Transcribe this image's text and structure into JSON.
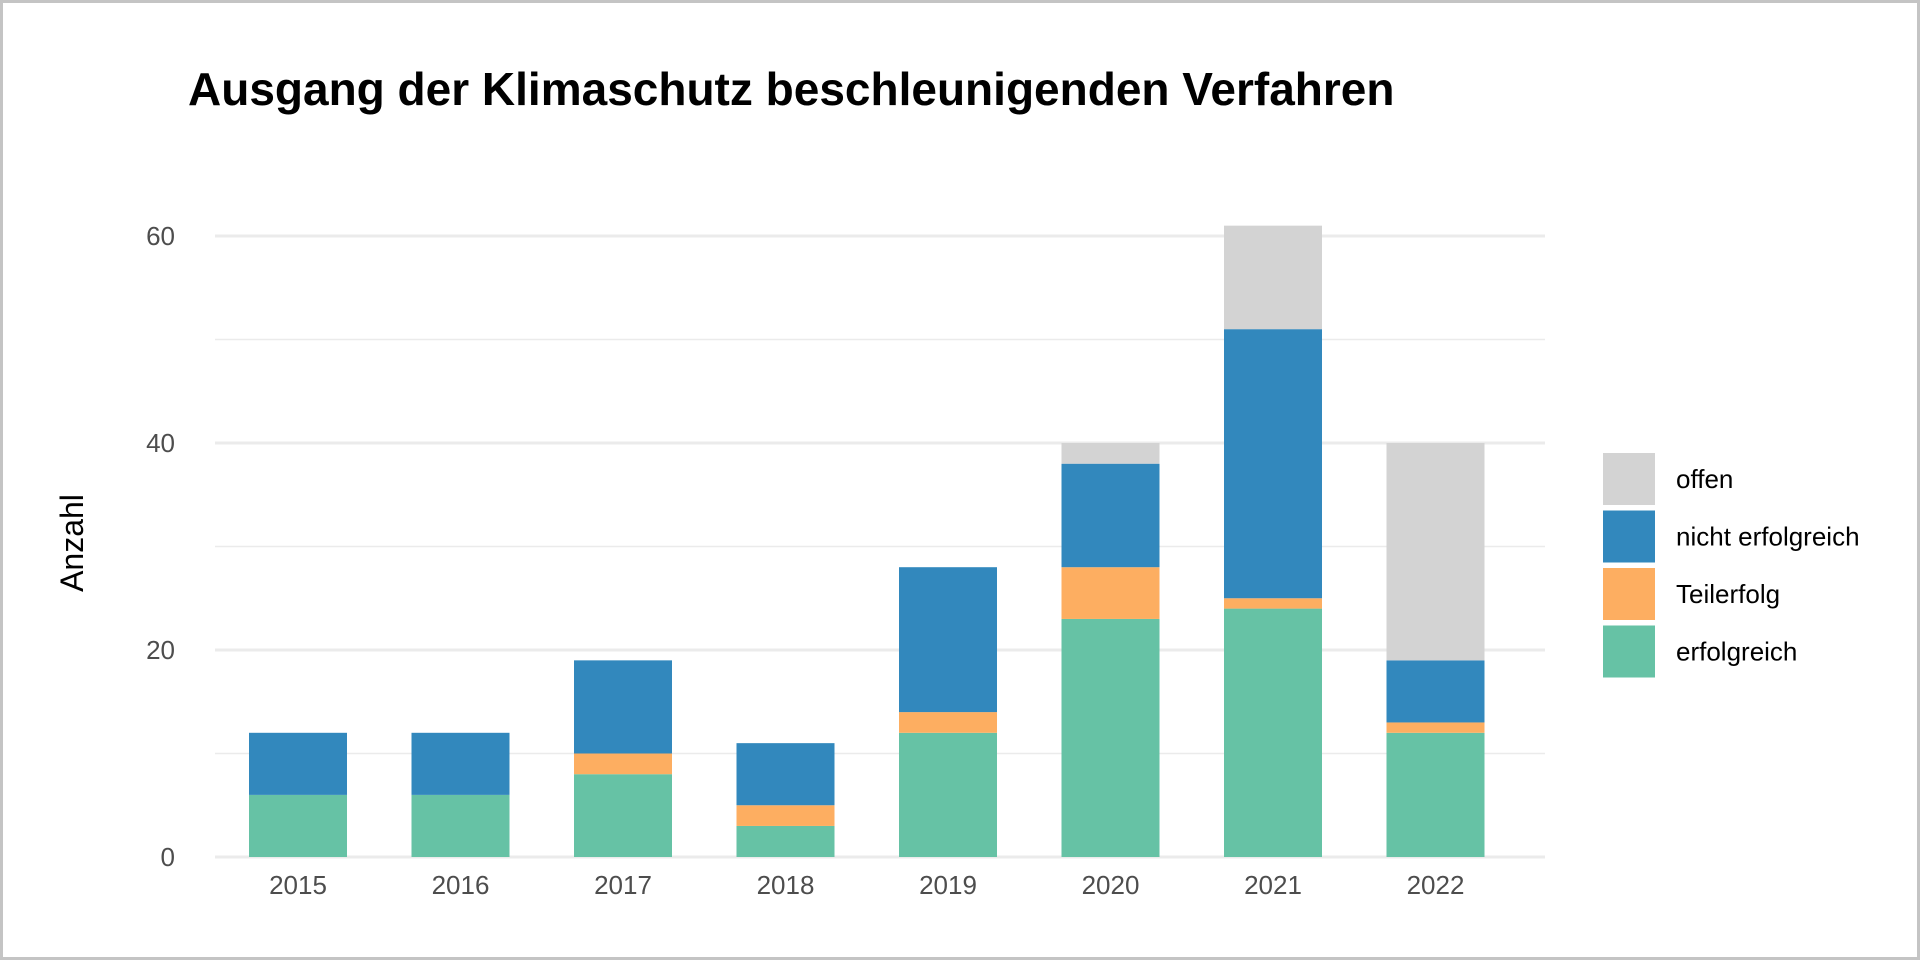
{
  "chart_data": {
    "type": "bar",
    "stacked": true,
    "title": "Ausgang der Klimaschutz beschleunigenden Verfahren",
    "xlabel": "",
    "ylabel": "Anzahl",
    "ylim": [
      0,
      63
    ],
    "yticks": [
      0,
      20,
      40,
      60
    ],
    "yticks_minor": [
      10,
      30,
      50
    ],
    "grid": true,
    "legend_position": "right",
    "categories": [
      "2015",
      "2016",
      "2017",
      "2018",
      "2019",
      "2020",
      "2021",
      "2022"
    ],
    "series": [
      {
        "name": "erfolgreich",
        "color": "#66c2a5",
        "values": [
          6,
          6,
          8,
          3,
          12,
          23,
          24,
          12
        ]
      },
      {
        "name": "Teilerfolg",
        "color": "#fdae61",
        "values": [
          0,
          0,
          2,
          2,
          2,
          5,
          1,
          1
        ]
      },
      {
        "name": "nicht erfolgreich",
        "color": "#3288bd",
        "values": [
          6,
          6,
          9,
          6,
          14,
          10,
          26,
          6
        ]
      },
      {
        "name": "offen",
        "color": "#d3d3d3",
        "values": [
          0,
          0,
          0,
          0,
          0,
          2,
          10,
          21
        ]
      }
    ],
    "legend_order": [
      "offen",
      "nicht erfolgreich",
      "Teilerfolg",
      "erfolgreich"
    ]
  }
}
